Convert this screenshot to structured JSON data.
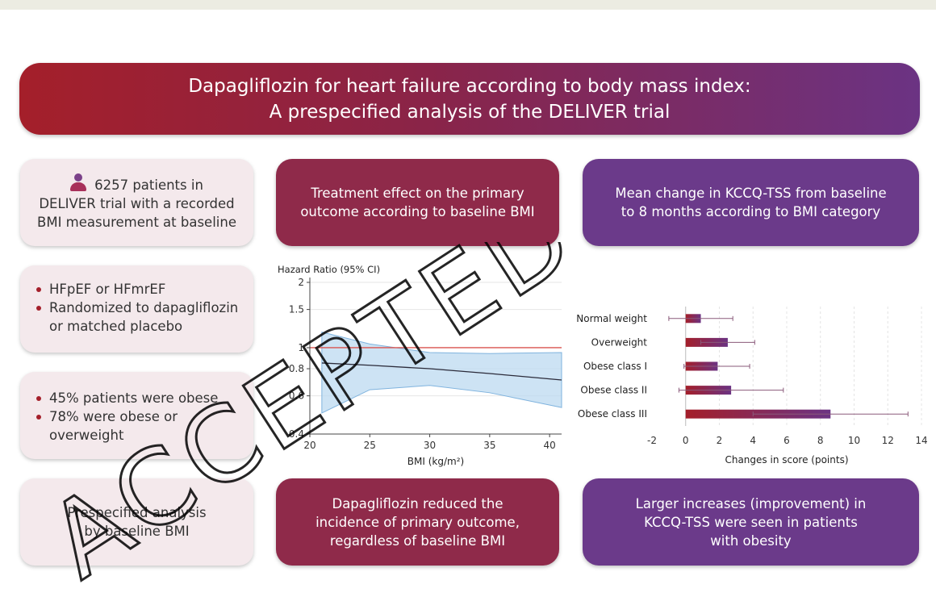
{
  "banner": {
    "line1": "Dapagliflozin for heart failure according to body mass index:",
    "line2": "A prespecified analysis of the DELIVER trial"
  },
  "left_boxes": {
    "patients": {
      "line1": "6257 patients in",
      "line2": "DELIVER trial with a recorded",
      "line3": "BMI measurement at baseline",
      "icon": "person-icon"
    },
    "criteria": [
      {
        "text": "HFpEF or HFmrEF"
      },
      {
        "text": "Randomized to dapagliflozin",
        "text2": "or matched placebo"
      }
    ],
    "obesity": [
      {
        "text": "45% patients were obese"
      },
      {
        "text": "78% were obese or",
        "text2": "overweight"
      }
    ],
    "analysis": {
      "line1": "Prespecified analysis",
      "line2": "by baseline BMI"
    }
  },
  "headers": {
    "treatment": {
      "line1": "Treatment effect on the primary",
      "line2": "outcome according to baseline BMI"
    },
    "kccq": {
      "line1": "Mean change in KCCQ-TSS from baseline",
      "line2": "to 8 months according to BMI category"
    }
  },
  "conclusions": {
    "treatment": {
      "line1": "Dapagliflozin reduced the",
      "line2": "incidence of primary outcome,",
      "line3": "regardless of baseline BMI"
    },
    "kccq": {
      "line1": "Larger increases (improvement) in",
      "line2": "KCCQ-TSS were seen in patients",
      "line3": "with obesity"
    }
  },
  "watermark": "ACCEPTED MANUSCRIPT",
  "colors": {
    "red": "#a41f2a",
    "purple": "#6b3383",
    "ci_band": "#bcd9f0",
    "reference_line": "#d9534f"
  },
  "chart_data": [
    {
      "type": "line",
      "title": "",
      "ylabel": "Hazard Ratio (95% CI)",
      "xlabel": "BMI (kg/m²)",
      "xlim": [
        20,
        41
      ],
      "ylim": [
        0.4,
        2
      ],
      "y_scale": "log",
      "x_ticks": [
        20,
        25,
        30,
        35,
        40
      ],
      "y_ticks": [
        0.4,
        0.6,
        0.8,
        1,
        1.5,
        2
      ],
      "y_tick_labels": [
        "0.4",
        "0.6",
        "0.8",
        "1",
        "1.5",
        "2"
      ],
      "reference_line": 1,
      "series": [
        {
          "x": [
            21,
            25,
            30,
            35,
            41
          ],
          "y": [
            0.85,
            0.83,
            0.8,
            0.76,
            0.71
          ],
          "lower": [
            0.5,
            0.64,
            0.67,
            0.62,
            0.53
          ],
          "upper": [
            1.18,
            1.04,
            0.95,
            0.94,
            0.95
          ]
        }
      ],
      "grid": true
    },
    {
      "type": "bar",
      "orientation": "horizontal",
      "title": "",
      "xlabel": "Changes in score (points)",
      "ylabel": "",
      "xlim": [
        -2,
        14
      ],
      "x_ticks": [
        -2,
        0,
        2,
        4,
        6,
        8,
        10,
        12,
        14
      ],
      "categories": [
        "Normal weight",
        "Overweight",
        "Obese class I",
        "Obese class II",
        "Obese class III"
      ],
      "series": [
        {
          "values": [
            0.9,
            2.5,
            1.9,
            2.7,
            8.6
          ],
          "error_low": [
            -1,
            0.9,
            -0.1,
            -0.4,
            4
          ],
          "error_high": [
            2.8,
            4.1,
            3.8,
            5.8,
            13.2
          ]
        }
      ],
      "grid": true
    }
  ]
}
